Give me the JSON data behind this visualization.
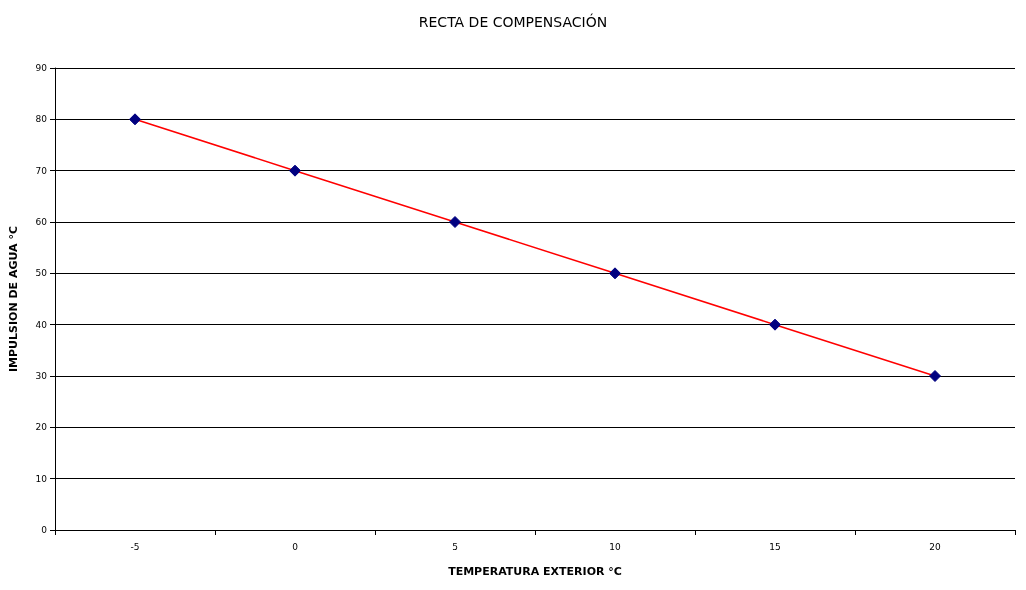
{
  "chart_data": {
    "type": "line",
    "title": "RECTA DE COMPENSACIÓN",
    "xlabel": "TEMPERATURA EXTERIOR °C",
    "ylabel": "IMPULSION DE AGUA °C",
    "categories": [
      "-5",
      "0",
      "5",
      "10",
      "15",
      "20"
    ],
    "series": [
      {
        "color": "#ff0000",
        "values": [
          80,
          70,
          60,
          50,
          40,
          30
        ]
      }
    ],
    "ylim": [
      0,
      90
    ],
    "yticks": [
      0,
      10,
      20,
      30,
      40,
      50,
      60,
      70,
      80,
      90
    ],
    "grid": "y",
    "marker": "diamond",
    "line_style": "solid"
  }
}
